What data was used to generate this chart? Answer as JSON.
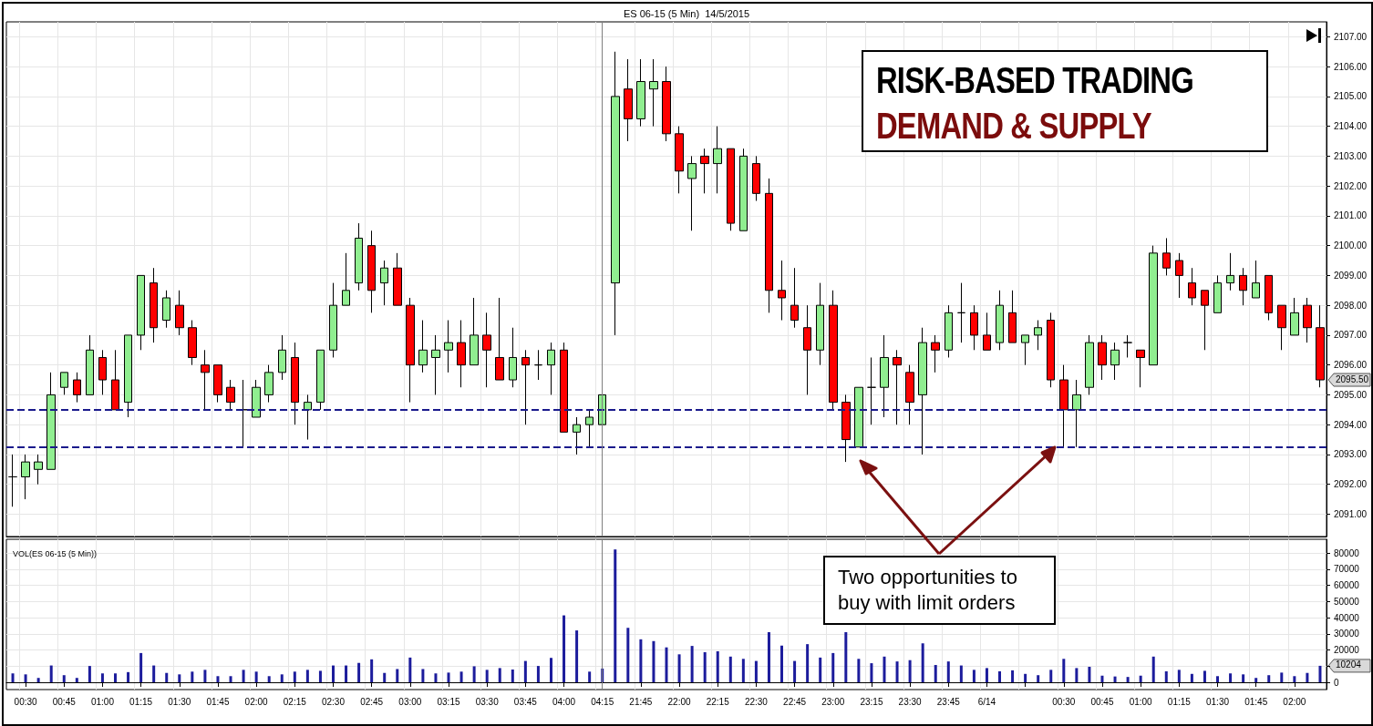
{
  "chart_data": [
    {
      "type": "candlestick",
      "title": "ES 06-15 (5 Min)  14/5/2015",
      "categories": [
        null,
        "00:30",
        null,
        null,
        "00:45",
        null,
        null,
        "01:00",
        null,
        null,
        "01:15",
        null,
        null,
        "01:30",
        null,
        null,
        "01:45",
        null,
        null,
        "02:00",
        null,
        null,
        "02:15",
        null,
        null,
        "02:30",
        null,
        null,
        "02:45",
        null,
        null,
        "03:00",
        null,
        null,
        "03:15",
        null,
        null,
        "03:30",
        null,
        null,
        "03:45",
        null,
        null,
        "04:00",
        null,
        null,
        "04:15",
        null,
        null,
        "21:45",
        null,
        null,
        "22:00",
        null,
        null,
        "22:15",
        null,
        null,
        "22:30",
        null,
        null,
        "22:45",
        null,
        null,
        "23:00",
        null,
        null,
        "23:15",
        null,
        null,
        "23:30",
        null,
        null,
        "23:45",
        null,
        null,
        "6/14",
        null,
        null,
        null,
        null,
        null,
        "00:30",
        null,
        null,
        "00:45",
        null,
        null,
        "01:00",
        null,
        null,
        "01:15",
        null,
        null,
        "01:30",
        null,
        null,
        "01:45",
        null,
        null,
        "02:00",
        null,
        null
      ],
      "ohlc": [
        [
          2092.25,
          2093,
          2091.25,
          2092.25
        ],
        [
          2092.25,
          2093,
          2091.5,
          2092.75
        ],
        [
          2092.5,
          2093,
          2092,
          2092.75
        ],
        [
          2092.5,
          2095.75,
          2092.5,
          2095
        ],
        [
          2095.25,
          2095.75,
          2095,
          2095.75
        ],
        [
          2095.5,
          2095.75,
          2094.75,
          2095
        ],
        [
          2095,
          2097,
          2095,
          2096.5
        ],
        [
          2096.25,
          2096.5,
          2095,
          2095.5
        ],
        [
          2095.5,
          2096.5,
          2094.5,
          2094.5
        ],
        [
          2094.75,
          2097,
          2094.25,
          2097
        ],
        [
          2097,
          2099,
          2096.5,
          2099
        ],
        [
          2098.75,
          2099.25,
          2096.75,
          2097.25
        ],
        [
          2097.5,
          2098.5,
          2097.25,
          2098.25
        ],
        [
          2098,
          2098.5,
          2097,
          2097.25
        ],
        [
          2097.25,
          2097.5,
          2096,
          2096.25
        ],
        [
          2096,
          2096.5,
          2094.5,
          2095.75
        ],
        [
          2096,
          2096,
          2094.75,
          2095
        ],
        [
          2095.25,
          2095.5,
          2094.5,
          2094.75
        ],
        [
          2094.5,
          2095.5,
          2093.25,
          2094.5
        ],
        [
          2094.25,
          2095.5,
          2094.25,
          2095.25
        ],
        [
          2095,
          2096,
          2094.75,
          2095.75
        ],
        [
          2095.75,
          2097,
          2095.5,
          2096.5
        ],
        [
          2096.25,
          2096.75,
          2094,
          2094.75
        ],
        [
          2094.5,
          2095,
          2093.5,
          2094.75
        ],
        [
          2094.75,
          2096.5,
          2094.5,
          2096.5
        ],
        [
          2096.5,
          2098.75,
          2096.25,
          2098
        ],
        [
          2098,
          2099.75,
          2098,
          2098.5
        ],
        [
          2098.75,
          2100.75,
          2098.5,
          2100.25
        ],
        [
          2100,
          2100.5,
          2097.75,
          2098.5
        ],
        [
          2098.75,
          2099.5,
          2098,
          2099.25
        ],
        [
          2099.25,
          2099.75,
          2098,
          2098
        ],
        [
          2098,
          2098.25,
          2094.75,
          2096
        ],
        [
          2096,
          2097.5,
          2095.75,
          2096.5
        ],
        [
          2096.25,
          2097,
          2095,
          2096.5
        ],
        [
          2096.5,
          2097.5,
          2095.75,
          2096.75
        ],
        [
          2096.75,
          2097.5,
          2095.25,
          2096
        ],
        [
          2096,
          2098.25,
          2096,
          2097
        ],
        [
          2097,
          2097.75,
          2095.25,
          2096.5
        ],
        [
          2096.25,
          2098.25,
          2095.5,
          2095.5
        ],
        [
          2095.5,
          2097.25,
          2095.25,
          2096.25
        ],
        [
          2096.25,
          2096.5,
          2094,
          2096
        ],
        [
          2096,
          2096.5,
          2095.5,
          2096
        ],
        [
          2096,
          2096.75,
          2095,
          2096.5
        ],
        [
          2096.5,
          2096.75,
          2093.75,
          2093.75
        ],
        [
          2093.75,
          2094.25,
          2093,
          2094
        ],
        [
          2094,
          2094.5,
          2093.25,
          2094.25
        ],
        [
          2094,
          2095.25,
          2093.75,
          2095
        ],
        [
          2098.75,
          2106.5,
          2097,
          2105
        ],
        [
          2105.25,
          2106.25,
          2103.5,
          2104.25
        ],
        [
          2104.25,
          2106.25,
          2104,
          2105.5
        ],
        [
          2105.25,
          2106.25,
          2104,
          2105.5
        ],
        [
          2105.5,
          2106,
          2103.5,
          2103.75
        ],
        [
          2103.75,
          2104,
          2101.75,
          2102.5
        ],
        [
          2102.25,
          2103,
          2100.5,
          2102.75
        ],
        [
          2103,
          2103.25,
          2101.75,
          2102.75
        ],
        [
          2102.75,
          2104,
          2101.75,
          2103.25
        ],
        [
          2103.25,
          2103.25,
          2100.5,
          2100.75
        ],
        [
          2100.5,
          2103.25,
          2100.5,
          2103
        ],
        [
          2102.75,
          2103,
          2101.5,
          2101.75
        ],
        [
          2101.75,
          2102.25,
          2097.75,
          2098.5
        ],
        [
          2098.5,
          2099.5,
          2097.5,
          2098.25
        ],
        [
          2098,
          2099.25,
          2097.25,
          2097.5
        ],
        [
          2097.25,
          2098,
          2095,
          2096.5
        ],
        [
          2096.5,
          2098.75,
          2096,
          2098
        ],
        [
          2098,
          2098.5,
          2094.5,
          2094.75
        ],
        [
          2094.75,
          2095,
          2092.75,
          2093.5
        ],
        [
          2093.25,
          2095.25,
          2093.25,
          2095.25
        ],
        [
          2095.25,
          2096.25,
          2094,
          2095.25
        ],
        [
          2095.25,
          2097,
          2094.25,
          2096.25
        ],
        [
          2096.25,
          2096.5,
          2094,
          2096
        ],
        [
          2095.75,
          2096,
          2094,
          2094.75
        ],
        [
          2095,
          2097.25,
          2093,
          2096.75
        ],
        [
          2096.75,
          2097,
          2095.75,
          2096.5
        ],
        [
          2096.5,
          2098,
          2096.25,
          2097.75
        ],
        [
          2097.75,
          2098.75,
          2096.75,
          2097.75
        ],
        [
          2097.75,
          2098,
          2096.5,
          2097
        ],
        [
          2097,
          2097.75,
          2096.5,
          2096.5
        ],
        [
          2096.75,
          2098.5,
          2096.5,
          2098
        ],
        [
          2097.75,
          2098.5,
          2096.75,
          2096.75
        ],
        [
          2096.75,
          2097,
          2096,
          2097
        ],
        [
          2097,
          2097.5,
          2096.5,
          2097.25
        ],
        [
          2097.5,
          2097.75,
          2095.25,
          2095.5
        ],
        [
          2095.5,
          2096,
          2093.25,
          2094.5
        ],
        [
          2094.5,
          2095.5,
          2093.25,
          2095
        ],
        [
          2095.25,
          2097,
          2095,
          2096.75
        ],
        [
          2096.75,
          2097,
          2095.5,
          2096
        ],
        [
          2096,
          2096.75,
          2095.5,
          2096.5
        ],
        [
          2096.75,
          2097,
          2096.25,
          2096.75
        ],
        [
          2096.5,
          2096.5,
          2095.25,
          2096.25
        ],
        [
          2096,
          2100,
          2096,
          2099.75
        ],
        [
          2099.75,
          2100.25,
          2099,
          2099.25
        ],
        [
          2099.5,
          2099.75,
          2098.25,
          2099
        ],
        [
          2098.75,
          2099.25,
          2098,
          2098.25
        ],
        [
          2098.5,
          2098.5,
          2096.5,
          2098
        ],
        [
          2097.75,
          2099,
          2097.75,
          2098.75
        ],
        [
          2098.75,
          2099.75,
          2098.5,
          2099
        ],
        [
          2099,
          2099.25,
          2098,
          2098.5
        ],
        [
          2098.25,
          2099.5,
          2098.25,
          2098.75
        ],
        [
          2099,
          2099,
          2097.5,
          2097.75
        ],
        [
          2098,
          2098,
          2096.5,
          2097.25
        ],
        [
          2097,
          2098.25,
          2097,
          2097.75
        ],
        [
          2098,
          2098.25,
          2096.75,
          2097.25
        ],
        [
          2097.25,
          2098,
          2095.25,
          2095.5
        ]
      ],
      "ylim": [
        2090.25,
        2107.5
      ],
      "yticks": [
        {
          "value": 2091,
          "label": "2091.00"
        },
        {
          "value": 2092,
          "label": "2092.00"
        },
        {
          "value": 2093,
          "label": "2093.00"
        },
        {
          "value": 2094,
          "label": "2094.00"
        },
        {
          "value": 2095,
          "label": "2095.00"
        },
        {
          "value": 2096,
          "label": "2096.00"
        },
        {
          "value": 2097,
          "label": "2097.00"
        },
        {
          "value": 2098,
          "label": "2098.00"
        },
        {
          "value": 2099,
          "label": "2099.00"
        },
        {
          "value": 2100,
          "label": "2100.00"
        },
        {
          "value": 2101,
          "label": "2101.00"
        },
        {
          "value": 2102,
          "label": "2102.00"
        },
        {
          "value": 2103,
          "label": "2103.00"
        },
        {
          "value": 2104,
          "label": "2104.00"
        },
        {
          "value": 2105,
          "label": "2105.00"
        },
        {
          "value": 2106,
          "label": "2106.00"
        },
        {
          "value": 2107,
          "label": "2107.00"
        }
      ],
      "grid": true,
      "tick_labels": "y",
      "ref_lines": [
        {
          "axis": "y",
          "value": 2094.5,
          "color": "#1a1a8c",
          "line_style": "dashed"
        },
        {
          "axis": "y",
          "value": 2093.25,
          "color": "#1a1a8c",
          "line_style": "dashed"
        },
        {
          "axis": "x",
          "value": "04:15",
          "color": "#7f7f7f"
        }
      ],
      "annotations": [
        "RISK-BASED TRADING",
        "DEMAND & SUPPLY",
        "Two opportunities to buy with limit orders",
        "2095.50"
      ]
    },
    {
      "type": "bar",
      "title": "VOL(ES 06-15 (5 Min))",
      "categories": [
        null,
        "00:30",
        null,
        null,
        "00:45",
        null,
        null,
        "01:00",
        null,
        null,
        "01:15",
        null,
        null,
        "01:30",
        null,
        null,
        "01:45",
        null,
        null,
        "02:00",
        null,
        null,
        "02:15",
        null,
        null,
        "02:30",
        null,
        null,
        "02:45",
        null,
        null,
        "03:00",
        null,
        null,
        "03:15",
        null,
        null,
        "03:30",
        null,
        null,
        "03:45",
        null,
        null,
        "04:00",
        null,
        null,
        "04:15",
        null,
        null,
        "21:45",
        null,
        null,
        "22:00",
        null,
        null,
        "22:15",
        null,
        null,
        "22:30",
        null,
        null,
        "22:45",
        null,
        null,
        "23:00",
        null,
        null,
        "23:15",
        null,
        null,
        "23:30",
        null,
        null,
        "23:45",
        null,
        null,
        "6/14",
        null,
        null,
        null,
        null,
        null,
        "00:30",
        null,
        null,
        "00:45",
        null,
        null,
        "01:00",
        null,
        null,
        "01:15",
        null,
        null,
        "01:30",
        null,
        null,
        "01:45",
        null,
        null,
        "02:00",
        null,
        null
      ],
      "values": [
        5500,
        4900,
        2700,
        10400,
        4400,
        2700,
        10100,
        5500,
        5500,
        6300,
        18100,
        10400,
        5800,
        4900,
        6600,
        7700,
        3800,
        3800,
        7700,
        6600,
        3800,
        4900,
        6600,
        7700,
        7100,
        10400,
        10400,
        12000,
        14200,
        5800,
        8200,
        15300,
        8200,
        5500,
        6000,
        6600,
        9900,
        7700,
        8800,
        7900,
        13200,
        10100,
        15100,
        41400,
        32100,
        6600,
        8500,
        82200,
        33700,
        26600,
        25500,
        21600,
        17300,
        22500,
        18600,
        19200,
        15900,
        14500,
        13200,
        31000,
        22700,
        13200,
        23600,
        15300,
        18100,
        31000,
        14500,
        11800,
        15900,
        12900,
        13700,
        24100,
        10700,
        12900,
        10400,
        7700,
        8800,
        6800,
        7400,
        5200,
        4400,
        7700,
        14500,
        8800,
        9600,
        4100,
        3600,
        3300,
        4100,
        15900,
        6800,
        7700,
        5200,
        7100,
        3800,
        5500,
        4900,
        2700,
        4400,
        6000,
        3800,
        5800,
        10204
      ],
      "color": "#1c1c9c",
      "ylim": [
        -4500,
        88500
      ],
      "yticks": [
        0,
        {
          "value": 10000,
          "label": null
        },
        20000,
        30000,
        40000,
        50000,
        60000,
        70000,
        80000
      ],
      "grid": true,
      "ref_lines": [
        {
          "axis": "x",
          "value": "04:15",
          "color": "#7f7f7f"
        }
      ],
      "annotations": [
        "10204"
      ]
    }
  ]
}
